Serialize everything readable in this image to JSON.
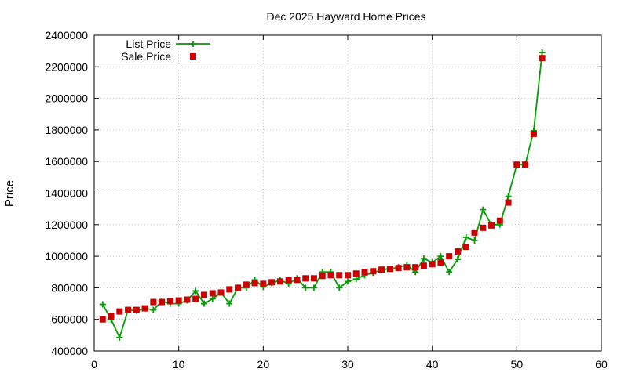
{
  "chart_data": {
    "type": "line",
    "title": "Dec 2025 Hayward Home Prices",
    "xlabel": "",
    "ylabel": "Price",
    "xlim": [
      0,
      60
    ],
    "ylim": [
      400000,
      2400000
    ],
    "xticks": [
      0,
      10,
      20,
      30,
      40,
      50,
      60
    ],
    "yticks": [
      400000,
      600000,
      800000,
      1000000,
      1200000,
      1400000,
      1600000,
      1800000,
      2000000,
      2200000,
      2400000
    ],
    "grid": true,
    "legend_position": "top-left",
    "series": [
      {
        "name": "List Price",
        "style": "line-plus",
        "color": "#009e00",
        "x": [
          1,
          2,
          3,
          4,
          5,
          6,
          7,
          8,
          9,
          10,
          11,
          12,
          13,
          14,
          15,
          16,
          17,
          18,
          19,
          20,
          21,
          22,
          23,
          24,
          25,
          26,
          27,
          28,
          29,
          30,
          31,
          32,
          33,
          34,
          35,
          36,
          37,
          38,
          39,
          40,
          41,
          42,
          43,
          44,
          45,
          46,
          47,
          48,
          49,
          50,
          51,
          52,
          53
        ],
        "y": [
          695000,
          600000,
          485000,
          660000,
          655000,
          670000,
          660000,
          715000,
          700000,
          700000,
          720000,
          780000,
          700000,
          730000,
          770000,
          700000,
          800000,
          800000,
          850000,
          805000,
          830000,
          850000,
          825000,
          860000,
          800000,
          800000,
          900000,
          900000,
          800000,
          840000,
          855000,
          880000,
          895000,
          915000,
          920000,
          930000,
          945000,
          900000,
          985000,
          960000,
          1000000,
          900000,
          980000,
          1120000,
          1100000,
          1295000,
          1200000,
          1200000,
          1380000,
          1580000,
          1580000,
          1795000,
          2290000
        ]
      },
      {
        "name": "Sale Price",
        "style": "square-points",
        "color": "#cc0000",
        "x": [
          1,
          2,
          3,
          4,
          5,
          6,
          7,
          8,
          9,
          10,
          11,
          12,
          13,
          14,
          15,
          16,
          17,
          18,
          19,
          20,
          21,
          22,
          23,
          24,
          25,
          26,
          27,
          28,
          29,
          30,
          31,
          32,
          33,
          34,
          35,
          36,
          37,
          38,
          39,
          40,
          41,
          42,
          43,
          44,
          45,
          46,
          47,
          48,
          49,
          50,
          51,
          52,
          53
        ],
        "y": [
          600000,
          620000,
          650000,
          660000,
          660000,
          670000,
          710000,
          710000,
          715000,
          720000,
          725000,
          730000,
          755000,
          765000,
          770000,
          790000,
          800000,
          820000,
          830000,
          825000,
          835000,
          840000,
          850000,
          850000,
          860000,
          860000,
          875000,
          880000,
          880000,
          880000,
          890000,
          900000,
          905000,
          915000,
          920000,
          925000,
          930000,
          930000,
          940000,
          950000,
          960000,
          1000000,
          1030000,
          1060000,
          1150000,
          1180000,
          1195000,
          1225000,
          1340000,
          1580000,
          1580000,
          1775000,
          2255000
        ]
      }
    ]
  }
}
